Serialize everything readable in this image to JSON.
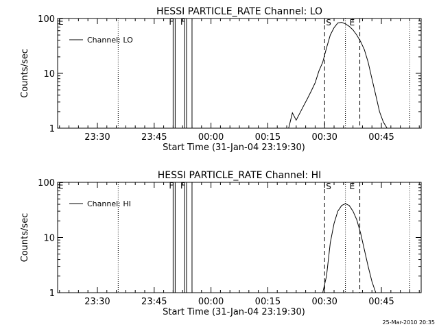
{
  "footer": "25-Mar-2010 20:35",
  "chart_data": [
    {
      "type": "line",
      "title": "HESSI PARTICLE_RATE Channel: LO",
      "xlabel": "Start Time (31-Jan-04 23:19:30)",
      "ylabel": "Counts/sec",
      "y_scale": "log",
      "ylim": [
        1,
        100
      ],
      "y_ticks": [
        1,
        10,
        100
      ],
      "y_tick_labels": [
        "1",
        "10",
        "100"
      ],
      "x_unit": "minutes after 23:19:30",
      "xlim": [
        0,
        96
      ],
      "x_ticks": [
        10.5,
        25.5,
        40.5,
        55.5,
        70.5,
        85.5
      ],
      "x_tick_labels": [
        "23:30",
        "23:45",
        "00:00",
        "00:15",
        "00:30",
        "00:45"
      ],
      "legend": {
        "label": "Channel: LO",
        "placement": "top-left"
      },
      "grid": false,
      "series": [
        {
          "name": "Channel: LO",
          "x": [
            61,
            62,
            63,
            64,
            65,
            66,
            67,
            68,
            69,
            70,
            71,
            72,
            73,
            74,
            75,
            76,
            77,
            78,
            79,
            80,
            81,
            82,
            83,
            84,
            85,
            86,
            87
          ],
          "y": [
            1,
            1.9,
            1.4,
            1.9,
            2.6,
            3.5,
            4.8,
            6.7,
            11,
            16,
            29,
            50,
            68,
            83,
            85,
            80,
            72,
            62,
            50,
            38,
            27,
            16,
            8,
            4,
            2,
            1.3,
            1
          ]
        }
      ],
      "markers": [
        {
          "label": "E",
          "x": 0
        },
        {
          "label": "F",
          "x": 30.5
        },
        {
          "label": "F",
          "x": 33.5
        },
        {
          "label": "S",
          "x": 70.5
        },
        {
          "label": "E",
          "x": 79.8
        }
      ]
    },
    {
      "type": "line",
      "title": "HESSI PARTICLE_RATE Channel: HI",
      "xlabel": "Start Time (31-Jan-04 23:19:30)",
      "ylabel": "Counts/sec",
      "y_scale": "log",
      "ylim": [
        1,
        100
      ],
      "y_ticks": [
        1,
        10,
        100
      ],
      "y_tick_labels": [
        "1",
        "10",
        "100"
      ],
      "x_unit": "minutes after 23:19:30",
      "xlim": [
        0,
        96
      ],
      "x_ticks": [
        10.5,
        25.5,
        40.5,
        55.5,
        70.5,
        85.5
      ],
      "x_tick_labels": [
        "23:30",
        "23:45",
        "00:00",
        "00:15",
        "00:30",
        "00:45"
      ],
      "legend": {
        "label": "Channel: HI",
        "placement": "top-left"
      },
      "grid": false,
      "series": [
        {
          "name": "Channel: HI",
          "x": [
            70,
            71,
            72,
            73,
            74,
            75,
            76,
            77,
            78,
            79,
            80,
            81,
            82,
            83,
            84
          ],
          "y": [
            1,
            2,
            8,
            18,
            30,
            38,
            41,
            38,
            30,
            21,
            12,
            6,
            3,
            1.6,
            1
          ]
        }
      ],
      "markers": [
        {
          "label": "E",
          "x": 0
        },
        {
          "label": "F",
          "x": 30.5
        },
        {
          "label": "F",
          "x": 33.5
        },
        {
          "label": "S",
          "x": 70.5
        },
        {
          "label": "E",
          "x": 79.8
        }
      ]
    }
  ]
}
